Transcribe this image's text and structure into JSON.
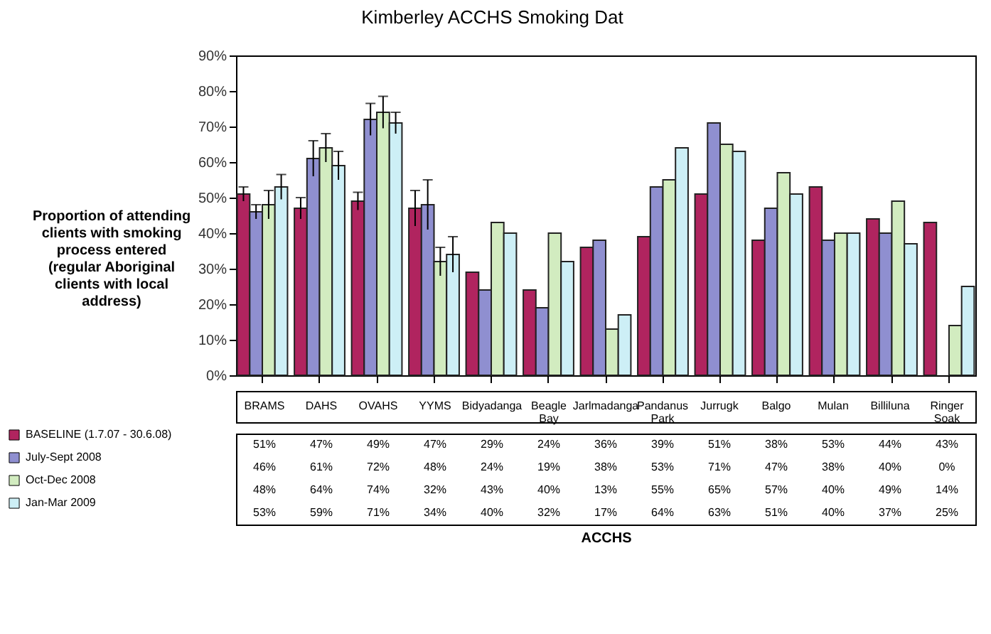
{
  "chart_data": {
    "type": "bar",
    "title": "Kimberley ACCHS Smoking Dat",
    "ylabel": "Proportion of attending clients with smoking process entered",
    "annotations": [
      "(regular Aboriginal clients with local address)",
      "ACCHS"
    ],
    "categories": [
      "BRAMS",
      "DAHS",
      "OVAHS",
      "YYMS",
      "Bidyadanga",
      "Beagle Bay",
      "Jarlmadanga",
      "Pandanus Park",
      "Jurrugk",
      "Balgo",
      "Mulan",
      "Billiluna",
      "Ringer Soak"
    ],
    "series": [
      {
        "name": "BASELINE (1.7.07 - 30.6.08)",
        "color": "#b0245f",
        "values": [
          51,
          47,
          49,
          47,
          29,
          24,
          36,
          39,
          51,
          38,
          53,
          44,
          43
        ],
        "value_labels": [
          "51%",
          "47%",
          "49%",
          "47%",
          "29%",
          "24%",
          "36%",
          "39%",
          "51%",
          "38%",
          "53%",
          "44%",
          "43%"
        ],
        "errors": [
          2,
          3,
          2.5,
          5,
          null,
          null,
          null,
          null,
          null,
          null,
          null,
          null,
          null
        ]
      },
      {
        "name": "July-Sept 2008",
        "color": "#8f8fd0",
        "values": [
          46,
          61,
          72,
          48,
          24,
          19,
          38,
          53,
          71,
          47,
          38,
          40,
          0
        ],
        "value_labels": [
          "46%",
          "61%",
          "72%",
          "48%",
          "24%",
          "19%",
          "38%",
          "53%",
          "71%",
          "47%",
          "38%",
          "40%",
          "0%"
        ],
        "errors": [
          2,
          5,
          4.5,
          7,
          null,
          null,
          null,
          null,
          null,
          null,
          null,
          null,
          null
        ]
      },
      {
        "name": "Oct-Dec 2008",
        "color": "#d2ecc0",
        "values": [
          48,
          64,
          74,
          32,
          43,
          40,
          13,
          55,
          65,
          57,
          40,
          49,
          14
        ],
        "value_labels": [
          "48%",
          "64%",
          "74%",
          "32%",
          "43%",
          "40%",
          "13%",
          "55%",
          "65%",
          "57%",
          "40%",
          "49%",
          "14%"
        ],
        "errors": [
          4,
          4,
          4.5,
          4,
          null,
          null,
          null,
          null,
          null,
          null,
          null,
          null,
          null
        ]
      },
      {
        "name": "Jan-Mar 2009",
        "color": "#cdeff6",
        "values": [
          53,
          59,
          71,
          34,
          40,
          32,
          17,
          64,
          63,
          51,
          40,
          37,
          25
        ],
        "value_labels": [
          "53%",
          "59%",
          "71%",
          "34%",
          "40%",
          "32%",
          "17%",
          "64%",
          "63%",
          "51%",
          "40%",
          "37%",
          "25%"
        ],
        "errors": [
          3.5,
          4,
          3,
          5,
          null,
          null,
          null,
          null,
          null,
          null,
          null,
          null,
          null
        ]
      }
    ],
    "ylim": [
      0,
      90
    ],
    "yticks": [
      {
        "value": 0,
        "label": "0%"
      },
      {
        "value": 10,
        "label": "10%"
      },
      {
        "value": 20,
        "label": "20%"
      },
      {
        "value": 30,
        "label": "30%"
      },
      {
        "value": 40,
        "label": "40%"
      },
      {
        "value": 50,
        "label": "50%"
      },
      {
        "value": 60,
        "label": "60%"
      },
      {
        "value": 70,
        "label": "70%"
      },
      {
        "value": 80,
        "label": "80%"
      },
      {
        "value": 90,
        "label": "90%"
      }
    ],
    "legend": "bottom left",
    "grid": false
  }
}
